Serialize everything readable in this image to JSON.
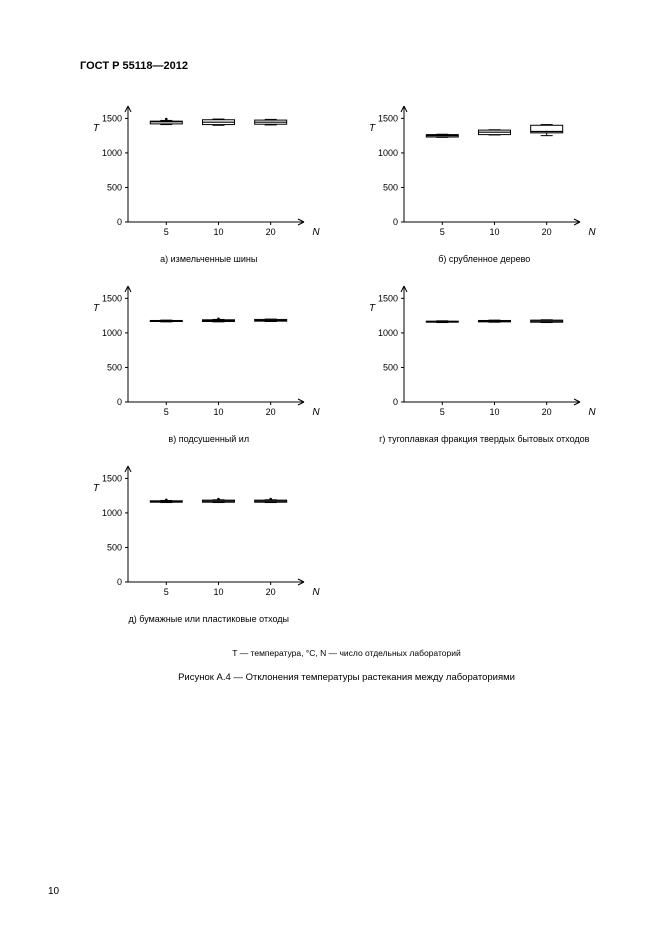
{
  "header": "ГОСТ Р 55118—2012",
  "page_number": "10",
  "legend": "T  —  температура, °C, N  — число отдельных лабораторий",
  "figure_caption": "Рисунок А.4 — Отклонения температуры растекания между лабораториями",
  "chart_common": {
    "y_axis_label": "T",
    "x_axis_label": "N",
    "y_ticks": [
      0,
      500,
      1000,
      1500
    ],
    "x_ticks": [
      5,
      10,
      20
    ],
    "y_range": [
      0,
      1650
    ],
    "axis_color": "#000000",
    "box_fill": "#ffffff",
    "box_stroke": "#000000",
    "font_size_axis": 9,
    "font_size_label": 10
  },
  "charts": [
    {
      "id": "a",
      "subcaption": "а) измельченные шины",
      "boxes": [
        {
          "x": 5,
          "q1": 1420,
          "median": 1450,
          "q3": 1460,
          "whisker_lo": 1410,
          "whisker_hi": 1470,
          "outlier": 1490
        },
        {
          "x": 10,
          "q1": 1410,
          "median": 1445,
          "q3": 1480,
          "whisker_lo": 1400,
          "whisker_hi": 1490,
          "outlier": null
        },
        {
          "x": 20,
          "q1": 1415,
          "median": 1445,
          "q3": 1475,
          "whisker_lo": 1405,
          "whisker_hi": 1485,
          "outlier": null
        }
      ]
    },
    {
      "id": "b",
      "subcaption": "б) срубленное дерево",
      "boxes": [
        {
          "x": 5,
          "q1": 1230,
          "median": 1250,
          "q3": 1265,
          "whisker_lo": 1225,
          "whisker_hi": 1270,
          "outlier": null
        },
        {
          "x": 10,
          "q1": 1265,
          "median": 1300,
          "q3": 1330,
          "whisker_lo": 1260,
          "whisker_hi": 1335,
          "outlier": null
        },
        {
          "x": 20,
          "q1": 1290,
          "median": 1310,
          "q3": 1400,
          "whisker_lo": 1250,
          "whisker_hi": 1410,
          "outlier": null
        }
      ]
    },
    {
      "id": "v",
      "subcaption": "в) подсушенный ил",
      "boxes": [
        {
          "x": 5,
          "q1": 1165,
          "median": 1175,
          "q3": 1180,
          "whisker_lo": 1160,
          "whisker_hi": 1185,
          "outlier": null
        },
        {
          "x": 10,
          "q1": 1165,
          "median": 1180,
          "q3": 1190,
          "whisker_lo": 1160,
          "whisker_hi": 1195,
          "outlier": 1205
        },
        {
          "x": 20,
          "q1": 1170,
          "median": 1180,
          "q3": 1195,
          "whisker_lo": 1165,
          "whisker_hi": 1200,
          "outlier": null
        }
      ]
    },
    {
      "id": "g",
      "subcaption": "г) тугоплавкая фракция твердых бытовых отходов",
      "boxes": [
        {
          "x": 5,
          "q1": 1155,
          "median": 1160,
          "q3": 1170,
          "whisker_lo": 1150,
          "whisker_hi": 1175,
          "outlier": null
        },
        {
          "x": 10,
          "q1": 1160,
          "median": 1170,
          "q3": 1180,
          "whisker_lo": 1155,
          "whisker_hi": 1185,
          "outlier": null
        },
        {
          "x": 20,
          "q1": 1155,
          "median": 1170,
          "q3": 1185,
          "whisker_lo": 1150,
          "whisker_hi": 1190,
          "outlier": null
        }
      ]
    },
    {
      "id": "d",
      "subcaption": "д) бумажные или пластиковые отходы",
      "boxes": [
        {
          "x": 5,
          "q1": 1155,
          "median": 1165,
          "q3": 1175,
          "whisker_lo": 1150,
          "whisker_hi": 1180,
          "outlier": 1190
        },
        {
          "x": 10,
          "q1": 1155,
          "median": 1170,
          "q3": 1185,
          "whisker_lo": 1150,
          "whisker_hi": 1190,
          "outlier": 1200
        },
        {
          "x": 20,
          "q1": 1155,
          "median": 1170,
          "q3": 1185,
          "whisker_lo": 1150,
          "whisker_hi": 1190,
          "outlier": 1200
        }
      ]
    }
  ]
}
